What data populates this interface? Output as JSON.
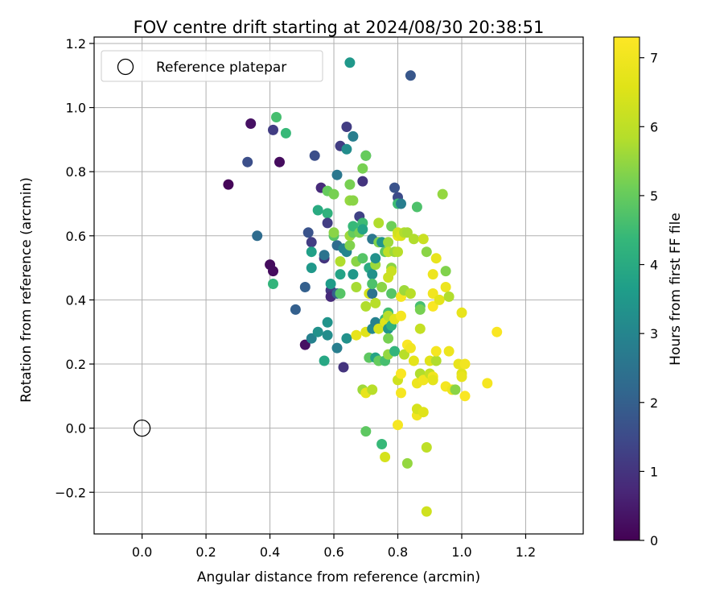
{
  "chart_data": {
    "type": "scatter",
    "title": "FOV centre drift starting at 2024/08/30 20:38:51",
    "xlabel": "Angular distance from reference (arcmin)",
    "ylabel": "Rotation from reference (arcmin)",
    "xlim": [
      -0.15,
      1.38
    ],
    "ylim": [
      -0.33,
      1.22
    ],
    "xticks": [
      0.0,
      0.2,
      0.4,
      0.6,
      0.8,
      1.0,
      1.2
    ],
    "xtick_labels": [
      "0.0",
      "0.2",
      "0.4",
      "0.6",
      "0.8",
      "1.0",
      "1.2"
    ],
    "yticks": [
      -0.2,
      0.0,
      0.2,
      0.4,
      0.6,
      0.8,
      1.0,
      1.2
    ],
    "ytick_labels": [
      "−0.2",
      "0.0",
      "0.2",
      "0.4",
      "0.6",
      "0.8",
      "1.0",
      "1.2"
    ],
    "grid": true,
    "legend": {
      "placement": "top-left",
      "entries": [
        "Reference platepar"
      ]
    },
    "reference_point": {
      "x": 0.0,
      "y": 0.0,
      "label": "Reference platepar"
    },
    "colorbar": {
      "label": "Hours from first FF file",
      "min": 0,
      "max": 7.3,
      "ticks": [
        0,
        1,
        2,
        3,
        4,
        5,
        6,
        7
      ],
      "tick_labels": [
        "0",
        "1",
        "2",
        "3",
        "4",
        "5",
        "6",
        "7"
      ],
      "colormap": "viridis"
    },
    "points": [
      {
        "x": 0.27,
        "y": 0.76,
        "c": 0.1
      },
      {
        "x": 0.34,
        "y": 0.95,
        "c": 0.3
      },
      {
        "x": 0.33,
        "y": 0.83,
        "c": 1.6
      },
      {
        "x": 0.36,
        "y": 0.6,
        "c": 2.3
      },
      {
        "x": 0.41,
        "y": 0.93,
        "c": 1.2
      },
      {
        "x": 0.43,
        "y": 0.83,
        "c": 0.2
      },
      {
        "x": 0.4,
        "y": 0.51,
        "c": 0.2
      },
      {
        "x": 0.41,
        "y": 0.49,
        "c": 0.2
      },
      {
        "x": 0.41,
        "y": 0.45,
        "c": 4.3
      },
      {
        "x": 0.42,
        "y": 0.97,
        "c": 4.6
      },
      {
        "x": 0.45,
        "y": 0.92,
        "c": 4.4
      },
      {
        "x": 0.48,
        "y": 0.37,
        "c": 2.0
      },
      {
        "x": 0.51,
        "y": 0.26,
        "c": 0.3
      },
      {
        "x": 0.51,
        "y": 0.44,
        "c": 2.0
      },
      {
        "x": 0.52,
        "y": 0.61,
        "c": 1.7
      },
      {
        "x": 0.53,
        "y": 0.58,
        "c": 1.2
      },
      {
        "x": 0.53,
        "y": 0.55,
        "c": 3.7
      },
      {
        "x": 0.53,
        "y": 0.5,
        "c": 3.5
      },
      {
        "x": 0.53,
        "y": 0.28,
        "c": 2.9
      },
      {
        "x": 0.54,
        "y": 0.85,
        "c": 1.6
      },
      {
        "x": 0.55,
        "y": 0.68,
        "c": 4.0
      },
      {
        "x": 0.55,
        "y": 0.3,
        "c": 3.3
      },
      {
        "x": 0.56,
        "y": 0.75,
        "c": 0.8
      },
      {
        "x": 0.57,
        "y": 0.53,
        "c": 1.0
      },
      {
        "x": 0.57,
        "y": 0.54,
        "c": 2.5
      },
      {
        "x": 0.57,
        "y": 0.21,
        "c": 3.9
      },
      {
        "x": 0.58,
        "y": 0.29,
        "c": 3.2
      },
      {
        "x": 0.58,
        "y": 0.33,
        "c": 3.4
      },
      {
        "x": 0.58,
        "y": 0.67,
        "c": 4.2
      },
      {
        "x": 0.58,
        "y": 0.74,
        "c": 5.0
      },
      {
        "x": 0.58,
        "y": 0.64,
        "c": 1.2
      },
      {
        "x": 0.59,
        "y": 0.43,
        "c": 1.1
      },
      {
        "x": 0.59,
        "y": 0.45,
        "c": 3.6
      },
      {
        "x": 0.59,
        "y": 0.41,
        "c": 0.8
      },
      {
        "x": 0.6,
        "y": 0.73,
        "c": 5.2
      },
      {
        "x": 0.6,
        "y": 0.6,
        "c": 4.8
      },
      {
        "x": 0.6,
        "y": 0.61,
        "c": 5.4
      },
      {
        "x": 0.61,
        "y": 0.79,
        "c": 2.6
      },
      {
        "x": 0.61,
        "y": 0.57,
        "c": 2.3
      },
      {
        "x": 0.61,
        "y": 0.42,
        "c": 2.0
      },
      {
        "x": 0.61,
        "y": 0.25,
        "c": 2.8
      },
      {
        "x": 0.62,
        "y": 0.48,
        "c": 3.8
      },
      {
        "x": 0.62,
        "y": 0.52,
        "c": 5.8
      },
      {
        "x": 0.62,
        "y": 0.42,
        "c": 4.8
      },
      {
        "x": 0.62,
        "y": 0.88,
        "c": 1.2
      },
      {
        "x": 0.63,
        "y": 0.19,
        "c": 1.0
      },
      {
        "x": 0.63,
        "y": 0.56,
        "c": 2.9
      },
      {
        "x": 0.64,
        "y": 0.28,
        "c": 3.3
      },
      {
        "x": 0.64,
        "y": 0.55,
        "c": 3.0
      },
      {
        "x": 0.64,
        "y": 0.87,
        "c": 3.2
      },
      {
        "x": 0.64,
        "y": 0.94,
        "c": 1.2
      },
      {
        "x": 0.65,
        "y": 0.76,
        "c": 5.2
      },
      {
        "x": 0.65,
        "y": 0.71,
        "c": 5.5
      },
      {
        "x": 0.65,
        "y": 0.57,
        "c": 5.3
      },
      {
        "x": 0.65,
        "y": 0.6,
        "c": 5.6
      },
      {
        "x": 0.65,
        "y": 1.14,
        "c": 3.5
      },
      {
        "x": 0.66,
        "y": 0.48,
        "c": 3.5
      },
      {
        "x": 0.66,
        "y": 0.91,
        "c": 2.8
      },
      {
        "x": 0.66,
        "y": 0.71,
        "c": 5.4
      },
      {
        "x": 0.66,
        "y": 0.61,
        "c": 5.0
      },
      {
        "x": 0.66,
        "y": 0.63,
        "c": 4.4
      },
      {
        "x": 0.67,
        "y": 0.29,
        "c": 6.8
      },
      {
        "x": 0.67,
        "y": 0.44,
        "c": 5.7
      },
      {
        "x": 0.67,
        "y": 0.52,
        "c": 5.4
      },
      {
        "x": 0.68,
        "y": 0.66,
        "c": 1.3
      },
      {
        "x": 0.68,
        "y": 0.61,
        "c": 5.2
      },
      {
        "x": 0.69,
        "y": 0.12,
        "c": 5.6
      },
      {
        "x": 0.69,
        "y": 0.77,
        "c": 1.0
      },
      {
        "x": 0.69,
        "y": 0.81,
        "c": 5.2
      },
      {
        "x": 0.69,
        "y": 0.64,
        "c": 4.5
      },
      {
        "x": 0.69,
        "y": 0.62,
        "c": 3.8
      },
      {
        "x": 0.69,
        "y": 0.53,
        "c": 4.8
      },
      {
        "x": 0.7,
        "y": 0.85,
        "c": 2.6
      },
      {
        "x": 0.7,
        "y": 0.85,
        "c": 5.0
      },
      {
        "x": 0.7,
        "y": 0.38,
        "c": 5.8
      },
      {
        "x": 0.7,
        "y": 0.3,
        "c": 6.6
      },
      {
        "x": 0.7,
        "y": 0.11,
        "c": 6.8
      },
      {
        "x": 0.7,
        "y": -0.01,
        "c": 4.9
      },
      {
        "x": 0.71,
        "y": 0.5,
        "c": 4.0
      },
      {
        "x": 0.71,
        "y": 0.22,
        "c": 4.9
      },
      {
        "x": 0.71,
        "y": 0.42,
        "c": 6.4
      },
      {
        "x": 0.72,
        "y": 0.48,
        "c": 3.3
      },
      {
        "x": 0.72,
        "y": 0.42,
        "c": 2.5
      },
      {
        "x": 0.72,
        "y": 0.59,
        "c": 2.6
      },
      {
        "x": 0.72,
        "y": 0.12,
        "c": 5.9
      },
      {
        "x": 0.72,
        "y": 0.31,
        "c": 3.1
      },
      {
        "x": 0.72,
        "y": 0.45,
        "c": 4.7
      },
      {
        "x": 0.73,
        "y": 0.33,
        "c": 2.9
      },
      {
        "x": 0.73,
        "y": 0.22,
        "c": 3.8
      },
      {
        "x": 0.73,
        "y": 0.39,
        "c": 5.9
      },
      {
        "x": 0.73,
        "y": 0.51,
        "c": 5.6
      },
      {
        "x": 0.73,
        "y": 0.53,
        "c": 3.3
      },
      {
        "x": 0.74,
        "y": 0.21,
        "c": 5.0
      },
      {
        "x": 0.74,
        "y": 0.58,
        "c": 5.3
      },
      {
        "x": 0.74,
        "y": 0.64,
        "c": 5.8
      },
      {
        "x": 0.74,
        "y": 0.31,
        "c": 6.4
      },
      {
        "x": 0.75,
        "y": -0.05,
        "c": 4.4
      },
      {
        "x": 0.75,
        "y": 0.58,
        "c": 3.4
      },
      {
        "x": 0.75,
        "y": 0.44,
        "c": 5.4
      },
      {
        "x": 0.76,
        "y": 0.55,
        "c": 4.9
      },
      {
        "x": 0.76,
        "y": 0.34,
        "c": 4.4
      },
      {
        "x": 0.76,
        "y": 0.21,
        "c": 4.6
      },
      {
        "x": 0.76,
        "y": -0.09,
        "c": 6.4
      },
      {
        "x": 0.76,
        "y": 0.33,
        "c": 3.7
      },
      {
        "x": 0.76,
        "y": 0.33,
        "c": 6.6
      },
      {
        "x": 0.77,
        "y": 0.31,
        "c": 3.4
      },
      {
        "x": 0.77,
        "y": 0.36,
        "c": 4.6
      },
      {
        "x": 0.77,
        "y": 0.58,
        "c": 5.6
      },
      {
        "x": 0.77,
        "y": 0.55,
        "c": 6.0
      },
      {
        "x": 0.77,
        "y": 0.47,
        "c": 6.2
      },
      {
        "x": 0.77,
        "y": 0.28,
        "c": 5.2
      },
      {
        "x": 0.77,
        "y": 0.23,
        "c": 5.5
      },
      {
        "x": 0.77,
        "y": 0.35,
        "c": 5.9
      },
      {
        "x": 0.78,
        "y": 0.5,
        "c": 5.4
      },
      {
        "x": 0.78,
        "y": 0.63,
        "c": 5.1
      },
      {
        "x": 0.78,
        "y": 0.49,
        "c": 6.2
      },
      {
        "x": 0.78,
        "y": 0.32,
        "c": 4.2
      },
      {
        "x": 0.78,
        "y": 0.42,
        "c": 4.8
      },
      {
        "x": 0.79,
        "y": 0.75,
        "c": 1.7
      },
      {
        "x": 0.79,
        "y": 0.24,
        "c": 4.3
      },
      {
        "x": 0.79,
        "y": 0.34,
        "c": 6.7
      },
      {
        "x": 0.79,
        "y": 0.55,
        "c": 5.6
      },
      {
        "x": 0.8,
        "y": 0.6,
        "c": 6.8
      },
      {
        "x": 0.8,
        "y": 0.01,
        "c": 7.1
      },
      {
        "x": 0.8,
        "y": 0.15,
        "c": 6.3
      },
      {
        "x": 0.8,
        "y": 0.72,
        "c": 1.5
      },
      {
        "x": 0.8,
        "y": 0.7,
        "c": 4.5
      },
      {
        "x": 0.8,
        "y": 0.61,
        "c": 6.3
      },
      {
        "x": 0.8,
        "y": 0.55,
        "c": 5.9
      },
      {
        "x": 0.81,
        "y": 0.11,
        "c": 7.1
      },
      {
        "x": 0.81,
        "y": 0.7,
        "c": 2.8
      },
      {
        "x": 0.81,
        "y": 0.6,
        "c": 6.5
      },
      {
        "x": 0.81,
        "y": 0.41,
        "c": 7.1
      },
      {
        "x": 0.81,
        "y": 0.35,
        "c": 7.1
      },
      {
        "x": 0.81,
        "y": 0.17,
        "c": 7.2
      },
      {
        "x": 0.82,
        "y": 0.61,
        "c": 5.8
      },
      {
        "x": 0.82,
        "y": 0.43,
        "c": 5.6
      },
      {
        "x": 0.82,
        "y": 0.23,
        "c": 5.9
      },
      {
        "x": 0.83,
        "y": -0.11,
        "c": 5.5
      },
      {
        "x": 0.83,
        "y": 0.26,
        "c": 7.2
      },
      {
        "x": 0.83,
        "y": 0.61,
        "c": 5.7
      },
      {
        "x": 0.84,
        "y": 0.25,
        "c": 7.0
      },
      {
        "x": 0.84,
        "y": 0.42,
        "c": 5.9
      },
      {
        "x": 0.84,
        "y": 1.1,
        "c": 1.8
      },
      {
        "x": 0.85,
        "y": 0.59,
        "c": 5.8
      },
      {
        "x": 0.85,
        "y": 0.21,
        "c": 6.7
      },
      {
        "x": 0.86,
        "y": 0.04,
        "c": 7.0
      },
      {
        "x": 0.86,
        "y": 0.14,
        "c": 6.9
      },
      {
        "x": 0.86,
        "y": 0.69,
        "c": 4.7
      },
      {
        "x": 0.86,
        "y": 0.06,
        "c": 6.4
      },
      {
        "x": 0.87,
        "y": 0.17,
        "c": 5.8
      },
      {
        "x": 0.87,
        "y": 0.31,
        "c": 6.1
      },
      {
        "x": 0.87,
        "y": 0.38,
        "c": 4.6
      },
      {
        "x": 0.87,
        "y": 0.37,
        "c": 5.2
      },
      {
        "x": 0.88,
        "y": 0.15,
        "c": 7.0
      },
      {
        "x": 0.88,
        "y": 0.05,
        "c": 6.6
      },
      {
        "x": 0.88,
        "y": 0.59,
        "c": 6.2
      },
      {
        "x": 0.89,
        "y": -0.06,
        "c": 6.0
      },
      {
        "x": 0.89,
        "y": 0.55,
        "c": 5.4
      },
      {
        "x": 0.89,
        "y": -0.26,
        "c": 6.3
      },
      {
        "x": 0.9,
        "y": 0.21,
        "c": 6.6
      },
      {
        "x": 0.9,
        "y": 0.17,
        "c": 6.1
      },
      {
        "x": 0.91,
        "y": 0.48,
        "c": 6.9
      },
      {
        "x": 0.91,
        "y": 0.42,
        "c": 7.0
      },
      {
        "x": 0.91,
        "y": 0.38,
        "c": 7.2
      },
      {
        "x": 0.91,
        "y": 0.16,
        "c": 7.0
      },
      {
        "x": 0.91,
        "y": 0.15,
        "c": 6.7
      },
      {
        "x": 0.92,
        "y": 0.53,
        "c": 6.8
      },
      {
        "x": 0.92,
        "y": 0.21,
        "c": 5.8
      },
      {
        "x": 0.92,
        "y": 0.24,
        "c": 7.1
      },
      {
        "x": 0.93,
        "y": 0.4,
        "c": 6.7
      },
      {
        "x": 0.94,
        "y": 0.73,
        "c": 5.5
      },
      {
        "x": 0.95,
        "y": 0.44,
        "c": 6.9
      },
      {
        "x": 0.95,
        "y": 0.49,
        "c": 5.3
      },
      {
        "x": 0.95,
        "y": 0.13,
        "c": 7.1
      },
      {
        "x": 0.96,
        "y": 0.41,
        "c": 5.8
      },
      {
        "x": 0.96,
        "y": 0.24,
        "c": 6.9
      },
      {
        "x": 0.97,
        "y": 0.12,
        "c": 6.9
      },
      {
        "x": 0.98,
        "y": 0.12,
        "c": 5.4
      },
      {
        "x": 0.99,
        "y": 0.2,
        "c": 6.8
      },
      {
        "x": 1.0,
        "y": 0.36,
        "c": 6.8
      },
      {
        "x": 1.0,
        "y": 0.17,
        "c": 6.6
      },
      {
        "x": 1.0,
        "y": 0.16,
        "c": 6.8
      },
      {
        "x": 1.01,
        "y": 0.1,
        "c": 7.2
      },
      {
        "x": 1.01,
        "y": 0.2,
        "c": 7.0
      },
      {
        "x": 1.08,
        "y": 0.14,
        "c": 7.1
      },
      {
        "x": 1.11,
        "y": 0.3,
        "c": 7.2
      }
    ]
  }
}
